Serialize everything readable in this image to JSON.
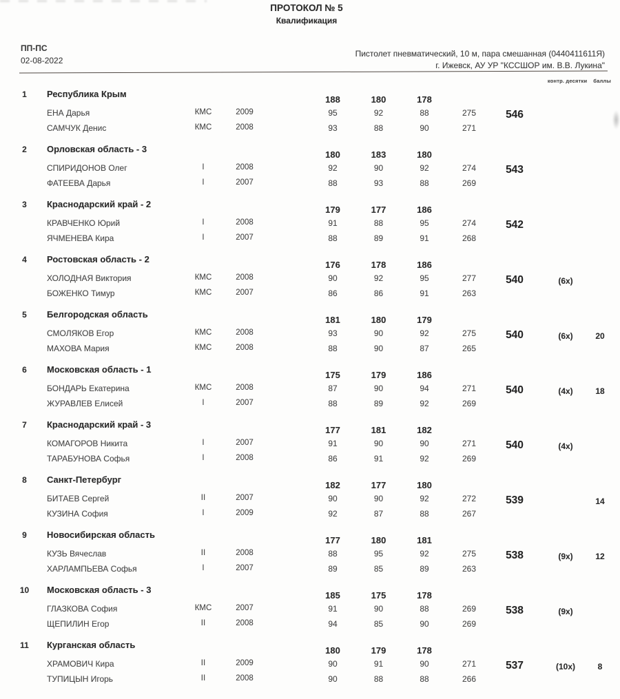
{
  "colors": {
    "ink": "#2b2b2b",
    "ink_light": "#474747",
    "paper": "#fdfdfc"
  },
  "page": {
    "title": "ПРОТОКОЛ № 5",
    "subtitle": "Квалификация"
  },
  "header": {
    "event_code": "ПП-ПС",
    "date": "02-08-2022",
    "discipline": "Пистолет пневматический, 10 м, пара смешанная (0440411611Я)",
    "venue": "г. Ижевск, АУ УР \"КССШОР им. В.В. Лукина\"",
    "note_tens": "контр. десятки",
    "note_points": "баллы"
  },
  "results": [
    {
      "rank": "1",
      "team": "Республика Крым",
      "series": [
        "188",
        "180",
        "178"
      ],
      "total": "546",
      "tiebreak": "",
      "points": "",
      "athletes": [
        {
          "name": "ЕНА Дарья",
          "class": "КМС",
          "year": "2009",
          "s": [
            "95",
            "92",
            "88"
          ],
          "sum": "275"
        },
        {
          "name": "САМЧУК Денис",
          "class": "КМС",
          "year": "2008",
          "s": [
            "93",
            "88",
            "90"
          ],
          "sum": "271"
        }
      ]
    },
    {
      "rank": "2",
      "team": "Орловская область - 3",
      "series": [
        "180",
        "183",
        "180"
      ],
      "total": "543",
      "tiebreak": "",
      "points": "",
      "athletes": [
        {
          "name": "СПИРИДОНОВ Олег",
          "class": "I",
          "year": "2008",
          "s": [
            "92",
            "90",
            "92"
          ],
          "sum": "274"
        },
        {
          "name": "ФАТЕЕВА Дарья",
          "class": "I",
          "year": "2007",
          "s": [
            "88",
            "93",
            "88"
          ],
          "sum": "269"
        }
      ]
    },
    {
      "rank": "3",
      "team": "Краснодарский край - 2",
      "series": [
        "179",
        "177",
        "186"
      ],
      "total": "542",
      "tiebreak": "",
      "points": "",
      "athletes": [
        {
          "name": "КРАВЧЕНКО Юрий",
          "class": "I",
          "year": "2008",
          "s": [
            "91",
            "88",
            "95"
          ],
          "sum": "274"
        },
        {
          "name": "ЯЧМЕНЕВА Кира",
          "class": "I",
          "year": "2007",
          "s": [
            "88",
            "89",
            "91"
          ],
          "sum": "268"
        }
      ]
    },
    {
      "rank": "4",
      "team": "Ростовская область - 2",
      "series": [
        "176",
        "178",
        "186"
      ],
      "total": "540",
      "tiebreak": "(6x)",
      "points": "",
      "athletes": [
        {
          "name": "ХОЛОДНАЯ Виктория",
          "class": "КМС",
          "year": "2008",
          "s": [
            "90",
            "92",
            "95"
          ],
          "sum": "277"
        },
        {
          "name": "БОЖЕНКО Тимур",
          "class": "КМС",
          "year": "2007",
          "s": [
            "86",
            "86",
            "91"
          ],
          "sum": "263"
        }
      ]
    },
    {
      "rank": "5",
      "team": "Белгородская область",
      "series": [
        "181",
        "180",
        "179"
      ],
      "total": "540",
      "tiebreak": "(6x)",
      "points": "20",
      "athletes": [
        {
          "name": "СМОЛЯКОВ Егор",
          "class": "КМС",
          "year": "2008",
          "s": [
            "93",
            "90",
            "92"
          ],
          "sum": "275"
        },
        {
          "name": "МАХОВА Мария",
          "class": "КМС",
          "year": "2008",
          "s": [
            "88",
            "90",
            "87"
          ],
          "sum": "265"
        }
      ]
    },
    {
      "rank": "6",
      "team": "Московская область - 1",
      "series": [
        "175",
        "179",
        "186"
      ],
      "total": "540",
      "tiebreak": "(4x)",
      "points": "18",
      "athletes": [
        {
          "name": "БОНДАРЬ Екатерина",
          "class": "КМС",
          "year": "2008",
          "s": [
            "87",
            "90",
            "94"
          ],
          "sum": "271"
        },
        {
          "name": "ЖУРАВЛЕВ Елисей",
          "class": "I",
          "year": "2007",
          "s": [
            "88",
            "89",
            "92"
          ],
          "sum": "269"
        }
      ]
    },
    {
      "rank": "7",
      "team": "Краснодарский край - 3",
      "series": [
        "177",
        "181",
        "182"
      ],
      "total": "540",
      "tiebreak": "(4x)",
      "points": "",
      "athletes": [
        {
          "name": "КОМАГОРОВ Никита",
          "class": "I",
          "year": "2007",
          "s": [
            "91",
            "90",
            "90"
          ],
          "sum": "271"
        },
        {
          "name": "ТАРАБУНОВА Софья",
          "class": "I",
          "year": "2008",
          "s": [
            "86",
            "91",
            "92"
          ],
          "sum": "269"
        }
      ]
    },
    {
      "rank": "8",
      "team": "Санкт-Петербург",
      "series": [
        "182",
        "177",
        "180"
      ],
      "total": "539",
      "tiebreak": "",
      "points": "14",
      "athletes": [
        {
          "name": "БИТАЕВ Сергей",
          "class": "II",
          "year": "2007",
          "s": [
            "90",
            "90",
            "92"
          ],
          "sum": "272"
        },
        {
          "name": "КУЗИНА София",
          "class": "I",
          "year": "2009",
          "s": [
            "92",
            "87",
            "88"
          ],
          "sum": "267"
        }
      ]
    },
    {
      "rank": "9",
      "team": "Новосибирская область",
      "series": [
        "177",
        "180",
        "181"
      ],
      "total": "538",
      "tiebreak": "(9x)",
      "points": "12",
      "athletes": [
        {
          "name": "КУЗЬ Вячеслав",
          "class": "II",
          "year": "2008",
          "s": [
            "88",
            "95",
            "92"
          ],
          "sum": "275"
        },
        {
          "name": "ХАРЛАМПЬЕВА Софья",
          "class": "I",
          "year": "2007",
          "s": [
            "89",
            "85",
            "89"
          ],
          "sum": "263"
        }
      ]
    },
    {
      "rank": "10",
      "team": "Московская область - 3",
      "series": [
        "185",
        "175",
        "178"
      ],
      "total": "538",
      "tiebreak": "(9x)",
      "points": "",
      "athletes": [
        {
          "name": "ГЛАЗКОВА София",
          "class": "КМС",
          "year": "2007",
          "s": [
            "91",
            "90",
            "88"
          ],
          "sum": "269"
        },
        {
          "name": "ЩЕПИЛИН Егор",
          "class": "II",
          "year": "2008",
          "s": [
            "94",
            "85",
            "90"
          ],
          "sum": "269"
        }
      ]
    },
    {
      "rank": "11",
      "team": "Курганская область",
      "series": [
        "180",
        "179",
        "178"
      ],
      "total": "537",
      "tiebreak": "(10x)",
      "points": "8",
      "athletes": [
        {
          "name": "ХРАМОВИЧ Кира",
          "class": "II",
          "year": "2009",
          "s": [
            "90",
            "91",
            "90"
          ],
          "sum": "271"
        },
        {
          "name": "ТУПИЦЫН Игорь",
          "class": "II",
          "year": "2008",
          "s": [
            "90",
            "88",
            "88"
          ],
          "sum": "266"
        }
      ]
    }
  ]
}
